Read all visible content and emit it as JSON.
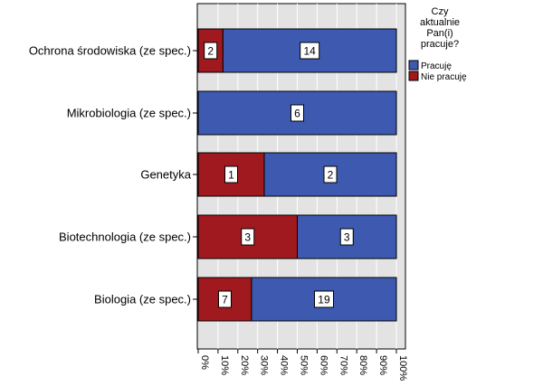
{
  "chart_data": {
    "type": "bar",
    "orientation": "horizontal",
    "stacked": "percent",
    "categories": [
      "Ochrona środowiska (ze spec.)",
      "Mikrobiologia (ze spec.)",
      "Genetyka",
      "Biotechnologia (ze spec.)",
      "Biologia (ze spec.)"
    ],
    "series": [
      {
        "name": "Nie pracuję",
        "color": "#a0191e",
        "values": [
          2,
          0,
          1,
          3,
          7
        ]
      },
      {
        "name": "Pracuję",
        "color": "#3d5ab0",
        "values": [
          14,
          6,
          2,
          3,
          19
        ]
      }
    ],
    "x_ticks": [
      "0%",
      "10%",
      "20%",
      "30%",
      "40%",
      "50%",
      "60%",
      "70%",
      "80%",
      "90%",
      "100%"
    ],
    "xlim": [
      0,
      100
    ],
    "legend": {
      "title_lines": [
        "Czy",
        "aktualnie",
        "Pan(i)",
        "pracuje?"
      ],
      "position": "top-right",
      "items": [
        {
          "label": "Pracuję",
          "color": "#3d5ab0"
        },
        {
          "label": "Nie pracuję",
          "color": "#a0191e"
        }
      ]
    },
    "plot_background": "#e3e3e3",
    "grid": true
  }
}
